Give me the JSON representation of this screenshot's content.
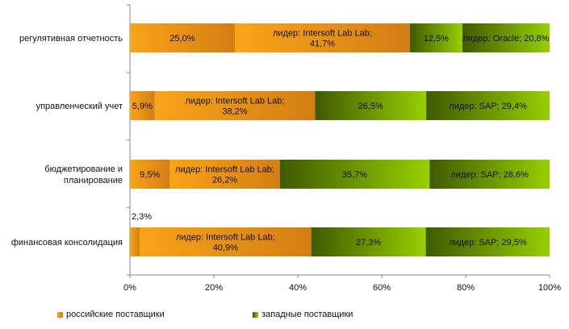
{
  "chart_data": {
    "type": "bar",
    "orientation": "horizontal",
    "stacked": "percent",
    "title": "",
    "xlabel": "",
    "ylabel": "",
    "xlim": [
      0,
      100
    ],
    "x_ticks": [
      "0%",
      "20%",
      "40%",
      "60%",
      "80%",
      "100%"
    ],
    "grid": false,
    "legend_position": "bottom",
    "categories": [
      [
        "регулятивная отчетность"
      ],
      [
        "управленческий учет"
      ],
      [
        "бюджетирование и",
        "планирование"
      ],
      [
        "финансовая консолидация"
      ]
    ],
    "segments": [
      [
        {
          "value": 25.0,
          "group": "russian",
          "label": [
            "25,0%"
          ]
        },
        {
          "value": 41.7,
          "group": "russian",
          "label": [
            "лидер: Intersoft Lab Lab;",
            "41,7%"
          ]
        },
        {
          "value": 12.5,
          "group": "western",
          "label": [
            "12,5%"
          ]
        },
        {
          "value": 20.8,
          "group": "western",
          "label": [
            "лидер: Oracle; 20,8%"
          ]
        }
      ],
      [
        {
          "value": 5.9,
          "group": "russian",
          "label": [
            "5,9%"
          ]
        },
        {
          "value": 38.2,
          "group": "russian",
          "label": [
            "лидер: Intersoft Lab Lab;",
            "38,2%"
          ]
        },
        {
          "value": 26.5,
          "group": "western",
          "label": [
            "26,5%"
          ]
        },
        {
          "value": 29.4,
          "group": "western",
          "label": [
            "лидер: SAP; 29,4%"
          ]
        }
      ],
      [
        {
          "value": 9.5,
          "group": "russian",
          "label": [
            "9,5%"
          ]
        },
        {
          "value": 26.2,
          "group": "russian",
          "label": [
            "лидер: Intersoft Lab Lab;",
            "26,2%"
          ]
        },
        {
          "value": 35.7,
          "group": "western",
          "label": [
            "35,7%"
          ]
        },
        {
          "value": 28.6,
          "group": "western",
          "label": [
            "лидер: SAP; 28,6%"
          ]
        }
      ],
      [
        {
          "value": 2.3,
          "group": "russian",
          "label": [
            "2,3%"
          ],
          "label_outside": true
        },
        {
          "value": 40.9,
          "group": "russian",
          "label": [
            "лидер: Intersoft Lab Lab;",
            "40,9%"
          ]
        },
        {
          "value": 27.3,
          "group": "western",
          "label": [
            "27,3%"
          ]
        },
        {
          "value": 29.5,
          "group": "western",
          "label": [
            "лидер: SAP; 29,5%"
          ]
        }
      ]
    ],
    "legend": [
      {
        "key": "russian",
        "label": "российские поставщики",
        "color": "#f79a0d"
      },
      {
        "key": "western",
        "label": "западные поставщики",
        "color": "#8fcc00"
      }
    ],
    "colors": {
      "russian_light": "#f9a418",
      "russian_dark": "#d37e14",
      "western_dark": "#3f5a00",
      "western_light": "#97d000",
      "axis": "#888888",
      "text": "#111111"
    }
  }
}
